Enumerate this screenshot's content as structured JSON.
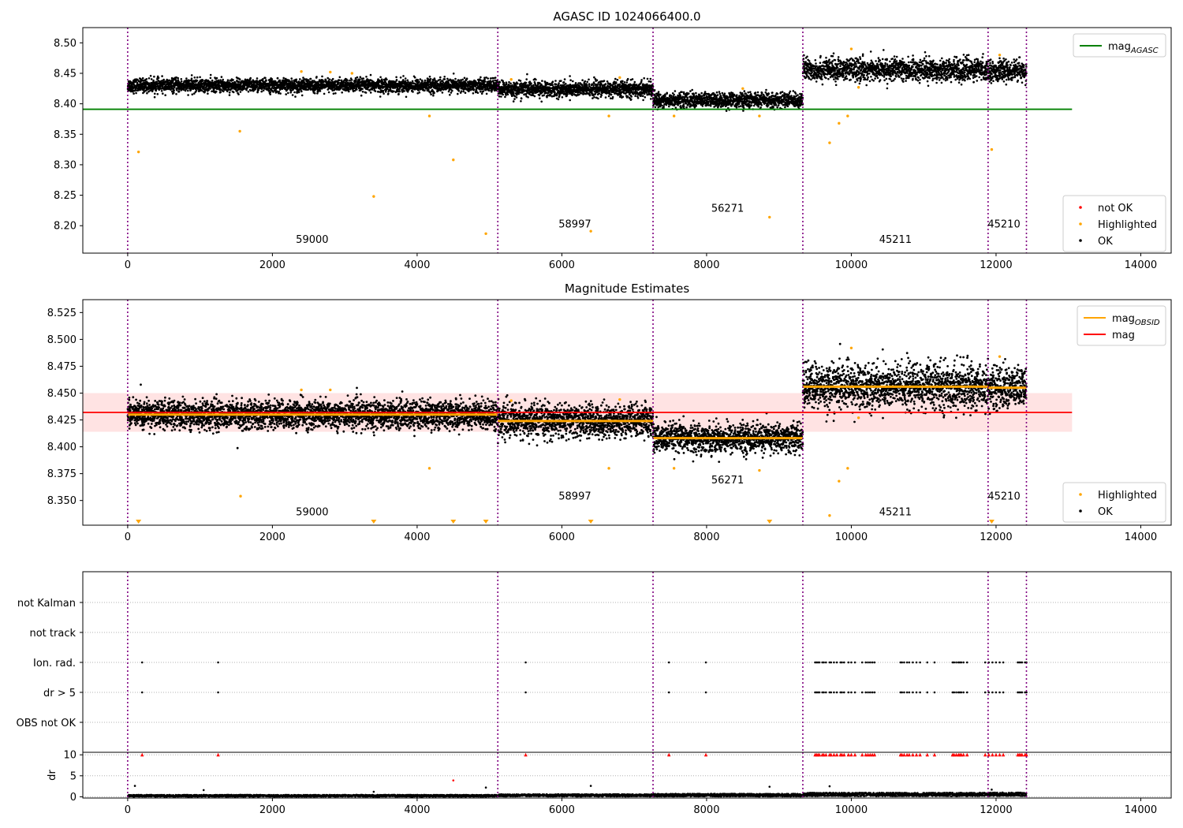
{
  "colors": {
    "axis": "#000000",
    "ok": "#000000",
    "highlighted": "#ffa500",
    "not_ok": "#ff0000",
    "agasc_line": "#008000",
    "obsid_line": "#ffa500",
    "mag_line": "#ff0000",
    "mag_band": "#ffc0c0",
    "obs_boundary": "#800080",
    "grid": "#b0b0b0"
  },
  "chart_data": [
    {
      "type": "scatter",
      "title": "AGASC ID 1024066400.0",
      "xlim": [
        -620,
        14420
      ],
      "ylim": [
        8.155,
        8.525
      ],
      "x_ticks": [
        0,
        2000,
        4000,
        6000,
        8000,
        10000,
        12000,
        14000
      ],
      "x_tick_labels": [
        "0",
        "2000",
        "4000",
        "6000",
        "8000",
        "10000",
        "12000",
        "14000"
      ],
      "y_ticks": [
        8.2,
        8.25,
        8.3,
        8.35,
        8.4,
        8.45,
        8.5
      ],
      "y_tick_labels": [
        "8.20",
        "8.25",
        "8.30",
        "8.35",
        "8.40",
        "8.45",
        "8.50"
      ],
      "obs_boundaries": [
        0,
        5115,
        7260,
        9330,
        11890,
        12420
      ],
      "obsid_labels": [
        {
          "text": "59000",
          "x": 2550,
          "y": 8.172
        },
        {
          "text": "58997",
          "x": 6180,
          "y": 8.197
        },
        {
          "text": "56271",
          "x": 8290,
          "y": 8.223
        },
        {
          "text": "45211",
          "x": 10610,
          "y": 8.172
        },
        {
          "text": "45210",
          "x": 12110,
          "y": 8.197
        }
      ],
      "segments": [
        {
          "x0": 0,
          "x1": 5115,
          "mean": 8.43,
          "sd": 0.0055
        },
        {
          "x0": 5115,
          "x1": 7260,
          "mean": 8.424,
          "sd": 0.0065
        },
        {
          "x0": 7260,
          "x1": 9330,
          "mean": 8.406,
          "sd": 0.006
        },
        {
          "x0": 9330,
          "x1": 11890,
          "mean": 8.456,
          "sd": 0.009
        },
        {
          "x0": 11890,
          "x1": 12420,
          "mean": 8.454,
          "sd": 0.008
        }
      ],
      "highlighted_points": [
        [
          150,
          8.321
        ],
        [
          1550,
          8.355
        ],
        [
          3400,
          8.248
        ],
        [
          4500,
          8.308
        ],
        [
          4950,
          8.187
        ],
        [
          4170,
          8.38
        ],
        [
          6400,
          8.191
        ],
        [
          6650,
          8.38
        ],
        [
          7550,
          8.38
        ],
        [
          8730,
          8.38
        ],
        [
          8870,
          8.214
        ],
        [
          9700,
          8.336
        ],
        [
          9830,
          8.368
        ],
        [
          9950,
          8.38
        ],
        [
          10100,
          8.427
        ],
        [
          11940,
          8.325
        ],
        [
          2400,
          8.453
        ],
        [
          2800,
          8.452
        ],
        [
          3100,
          8.45
        ],
        [
          5300,
          8.44
        ],
        [
          6800,
          8.443
        ],
        [
          8500,
          8.425
        ],
        [
          10000,
          8.49
        ],
        [
          12050,
          8.48
        ]
      ],
      "reference_lines": [
        {
          "name": "mag",
          "subscript": "AGASC",
          "y": 8.391,
          "x0": -620,
          "x1": 13050,
          "color": "#008000"
        }
      ],
      "legends": [
        {
          "position": "top-right",
          "entries": [
            {
              "kind": "line",
              "label": "mag",
              "subscript": "AGASC",
              "color": "#008000"
            }
          ]
        },
        {
          "position": "lower-right",
          "entries": [
            {
              "kind": "dot",
              "label": "not OK",
              "color": "#ff0000"
            },
            {
              "kind": "dot",
              "label": "Highlighted",
              "color": "#ffa500"
            },
            {
              "kind": "dot",
              "label": "OK",
              "color": "#000000"
            }
          ]
        }
      ]
    },
    {
      "type": "scatter",
      "title": "Magnitude Estimates",
      "xlim": [
        -620,
        14420
      ],
      "ylim": [
        8.327,
        8.537
      ],
      "x_ticks": [
        0,
        2000,
        4000,
        6000,
        8000,
        10000,
        12000,
        14000
      ],
      "x_tick_labels": [
        "0",
        "2000",
        "4000",
        "6000",
        "8000",
        "10000",
        "12000",
        "14000"
      ],
      "y_ticks": [
        8.35,
        8.375,
        8.4,
        8.425,
        8.45,
        8.475,
        8.5,
        8.525
      ],
      "y_tick_labels": [
        "8.350",
        "8.375",
        "8.400",
        "8.425",
        "8.450",
        "8.475",
        "8.500",
        "8.525"
      ],
      "obs_boundaries": [
        0,
        5115,
        7260,
        9330,
        11890,
        12420
      ],
      "obsid_labels": [
        {
          "text": "59000",
          "x": 2550,
          "y": 8.336
        },
        {
          "text": "58997",
          "x": 6180,
          "y": 8.351
        },
        {
          "text": "56271",
          "x": 8290,
          "y": 8.366
        },
        {
          "text": "45211",
          "x": 10610,
          "y": 8.336
        },
        {
          "text": "45210",
          "x": 12110,
          "y": 8.351
        }
      ],
      "mag_band": {
        "y0": 8.414,
        "y1": 8.45,
        "x0": -620,
        "x1": 13050
      },
      "segments": [
        {
          "x0": 0,
          "x1": 5115,
          "mean": 8.43,
          "sd": 0.0065
        },
        {
          "x0": 5115,
          "x1": 7260,
          "mean": 8.424,
          "sd": 0.0075
        },
        {
          "x0": 7260,
          "x1": 9330,
          "mean": 8.408,
          "sd": 0.0065
        },
        {
          "x0": 9330,
          "x1": 11890,
          "mean": 8.456,
          "sd": 0.0105
        },
        {
          "x0": 11890,
          "x1": 12420,
          "mean": 8.455,
          "sd": 0.0095
        }
      ],
      "highlighted_points": [
        [
          1560,
          8.354
        ],
        [
          4170,
          8.38
        ],
        [
          6650,
          8.38
        ],
        [
          7550,
          8.38
        ],
        [
          8730,
          8.378
        ],
        [
          9700,
          8.336
        ],
        [
          9830,
          8.368
        ],
        [
          9950,
          8.38
        ],
        [
          10100,
          8.427
        ],
        [
          2400,
          8.453
        ],
        [
          2800,
          8.453
        ],
        [
          5300,
          8.443
        ],
        [
          6800,
          8.444
        ],
        [
          10000,
          8.492
        ],
        [
          12050,
          8.484
        ]
      ],
      "clipped_markers_x": [
        150,
        3400,
        4500,
        4950,
        6400,
        8870,
        11940
      ],
      "reference_lines": [
        {
          "name": "mag",
          "subscript": "OBSID",
          "color": "#ffa500"
        },
        {
          "name": "mag",
          "y": 8.432,
          "x0": -620,
          "x1": 13050,
          "color": "#ff0000"
        }
      ],
      "legends": [
        {
          "position": "top-right",
          "entries": [
            {
              "kind": "line",
              "label": "mag",
              "subscript": "OBSID",
              "color": "#ffa500"
            },
            {
              "kind": "line",
              "label": "mag",
              "color": "#ff0000"
            }
          ]
        },
        {
          "position": "lower-right",
          "entries": [
            {
              "kind": "dot",
              "label": "Highlighted",
              "color": "#ffa500"
            },
            {
              "kind": "dot",
              "label": "OK",
              "color": "#000000"
            }
          ]
        }
      ]
    },
    {
      "type": "scatter",
      "title": "",
      "xlim": [
        -620,
        14420
      ],
      "categories": [
        "not Kalman",
        "not track",
        "Ion. rad.",
        "dr > 5",
        "OBS not OK"
      ],
      "obs_boundaries": [
        0,
        5115,
        7260,
        9330,
        11890,
        12420
      ],
      "flag_x": [
        200,
        1250,
        5500,
        7480,
        7990,
        9500,
        9520,
        9540,
        9560,
        9600,
        9620,
        9650,
        9700,
        9720,
        9760,
        9800,
        9850,
        9870,
        9900,
        9960,
        10000,
        10050,
        10150,
        10200,
        10230,
        10260,
        10290,
        10320,
        10680,
        10700,
        10730,
        10770,
        10800,
        10850,
        10900,
        10950,
        11050,
        11150,
        11400,
        11420,
        11450,
        11480,
        11500,
        11520,
        11550,
        11600,
        11850,
        11900,
        11950,
        12000,
        12050,
        12100,
        12300,
        12320,
        12340,
        12360,
        12400,
        12420
      ],
      "flag_rows": [
        "Ion. rad.",
        "dr > 5"
      ],
      "x_ticks": [
        0,
        2000,
        4000,
        6000,
        8000,
        10000,
        12000,
        14000
      ],
      "x_tick_labels": [
        "0",
        "2000",
        "4000",
        "6000",
        "8000",
        "10000",
        "12000",
        "14000"
      ]
    },
    {
      "type": "scatter",
      "ylabel": "dr",
      "xlim": [
        -620,
        14420
      ],
      "ylim": [
        -0.3,
        10.6
      ],
      "y_ticks": [
        0,
        5,
        10
      ],
      "y_tick_labels": [
        "0",
        "5",
        "10"
      ],
      "x_ticks": [
        0,
        2000,
        4000,
        6000,
        8000,
        10000,
        12000,
        14000
      ],
      "x_tick_labels": [
        "0",
        "2000",
        "4000",
        "6000",
        "8000",
        "10000",
        "12000",
        "14000"
      ],
      "obs_boundaries": [
        0,
        5115,
        7260,
        9330,
        11890,
        12420
      ],
      "clipped_x": [
        200,
        1250,
        5500,
        7480,
        7990,
        9500,
        9520,
        9540,
        9560,
        9600,
        9620,
        9650,
        9700,
        9720,
        9760,
        9800,
        9850,
        9870,
        9900,
        9960,
        10000,
        10050,
        10150,
        10200,
        10230,
        10260,
        10290,
        10320,
        10680,
        10700,
        10730,
        10770,
        10800,
        10850,
        10900,
        10950,
        11050,
        11150,
        11400,
        11420,
        11450,
        11480,
        11500,
        11520,
        11550,
        11600,
        11850,
        11900,
        11950,
        12000,
        12050,
        12100,
        12300,
        12320,
        12340,
        12360,
        12400,
        12420
      ],
      "outliers": [
        [
          100,
          2.6
        ],
        [
          1050,
          1.6
        ],
        [
          3400,
          1.2
        ],
        [
          4500,
          3.9
        ],
        [
          4950,
          2.2
        ],
        [
          6400,
          2.6
        ],
        [
          8870,
          2.4
        ],
        [
          9700,
          2.5
        ],
        [
          11940,
          1.7
        ]
      ],
      "segment_levels": [
        {
          "x0": 0,
          "x1": 5115,
          "level": 0.25,
          "spread": 0.25
        },
        {
          "x0": 5115,
          "x1": 7260,
          "level": 0.35,
          "spread": 0.3
        },
        {
          "x0": 7260,
          "x1": 9330,
          "level": 0.4,
          "spread": 0.35
        },
        {
          "x0": 9330,
          "x1": 11890,
          "level": 0.55,
          "spread": 0.45
        },
        {
          "x0": 11890,
          "x1": 12420,
          "level": 0.6,
          "spread": 0.45
        }
      ]
    }
  ]
}
